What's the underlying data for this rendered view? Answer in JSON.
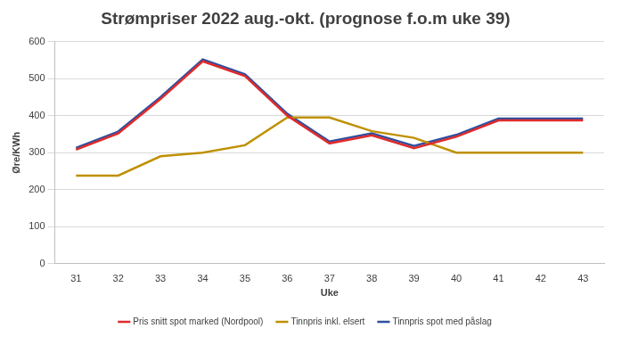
{
  "chart_data": {
    "type": "line",
    "title": "Strømpriser 2022 aug.-okt. (prognose f.o.m uke 39)",
    "x_label": "Uke",
    "y_label": "Øre/KWh",
    "categories": [
      31,
      32,
      33,
      34,
      35,
      36,
      37,
      38,
      39,
      40,
      41,
      42,
      43
    ],
    "series": [
      {
        "name": "Pris snitt spot marked (Nordpool)",
        "color": "#e02b2b",
        "values": [
          308,
          352,
          445,
          547,
          507,
          400,
          325,
          347,
          312,
          343,
          387,
          387,
          387
        ]
      },
      {
        "name": "Tinnpris inkl. elsert",
        "color": "#bf9000",
        "values": [
          238,
          238,
          290,
          300,
          320,
          395,
          395,
          358,
          340,
          300,
          300,
          300,
          300
        ]
      },
      {
        "name": "Tinnpris spot med påslag",
        "color": "#2f4f9f",
        "values": [
          313,
          357,
          450,
          552,
          512,
          405,
          330,
          352,
          318,
          348,
          392,
          392,
          392
        ]
      }
    ],
    "ylim": [
      0,
      600
    ],
    "yticks": [
      0,
      100,
      200,
      300,
      400,
      500,
      600
    ],
    "grid": true,
    "legend": "bottom"
  }
}
